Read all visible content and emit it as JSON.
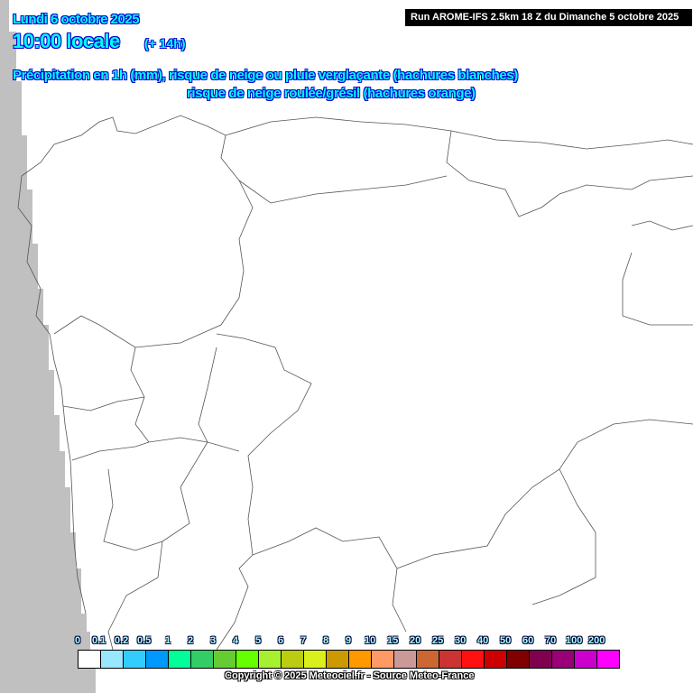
{
  "header": {
    "date": "Lundi 6 octobre 2025",
    "time": "10:00 locale",
    "lead": "(+ 14h)",
    "run": "Run AROME-IFS 2.5km 18 Z du Dimanche 5 octobre 2025",
    "desc_line1": "Précipitation en 1h (mm), risque de neige ou pluie verglaçante (hachures blanches)",
    "desc_line2": "risque de neige roulée/grésil (hachures orange)"
  },
  "legend": {
    "labels": [
      "0",
      "0.1",
      "0.2",
      "0.5",
      "1",
      "2",
      "3",
      "4",
      "5",
      "6",
      "7",
      "8",
      "9",
      "10",
      "15",
      "20",
      "25",
      "30",
      "40",
      "50",
      "60",
      "70",
      "100",
      "200"
    ],
    "colors": [
      "#ffffff",
      "#99e6ff",
      "#33ccff",
      "#0099ff",
      "#00ff99",
      "#33cc66",
      "#66cc33",
      "#66ff00",
      "#a6f030",
      "#bbcc11",
      "#d9f01a",
      "#cc9900",
      "#ff9900",
      "#ff9966",
      "#cc9999",
      "#cc6633",
      "#cc3333",
      "#ff1111",
      "#cc0000",
      "#800000",
      "#800050",
      "#990077",
      "#cc00cc",
      "#ff00ff"
    ]
  },
  "copyright": "Copyright © 2025 Meteociel.fr - Source Meteo-France",
  "colors": {
    "ocean": "#c0c0c0",
    "land": "#ffffff",
    "borders": "#555555"
  }
}
